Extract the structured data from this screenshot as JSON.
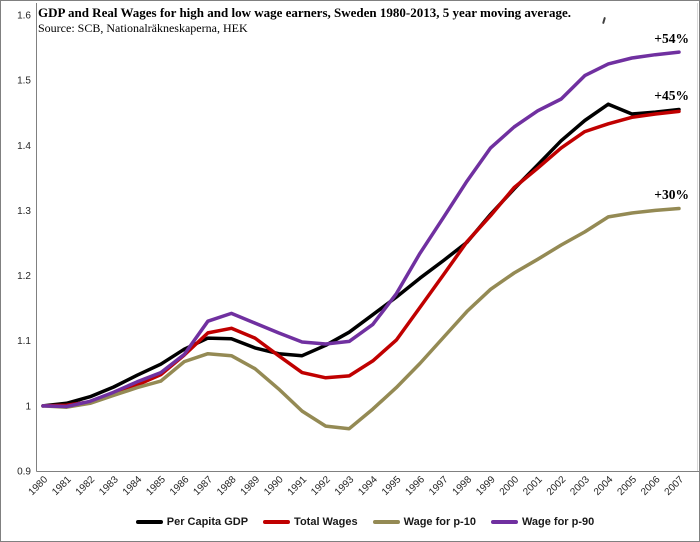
{
  "chart_data": {
    "type": "line",
    "title": "GDP and Real Wages for high and low wage earners, Sweden 1980-2013, 5 year moving average.",
    "source": "Source: SCB, Nationalräkneskaperna, HEK",
    "x": [
      "1980",
      "1981",
      "1982",
      "1983",
      "1984",
      "1985",
      "1986",
      "1987",
      "1988",
      "1989",
      "1990",
      "1991",
      "1992",
      "1993",
      "1994",
      "1995",
      "1996",
      "1997",
      "1998",
      "1999",
      "2000",
      "2001",
      "2002",
      "2003",
      "2004",
      "2005",
      "2006",
      "2007"
    ],
    "ylim": [
      0.9,
      1.6
    ],
    "yticks": [
      0.9,
      1.0,
      1.1,
      1.2,
      1.3,
      1.4,
      1.5,
      1.6
    ],
    "ytick_labels": [
      "0.9",
      "1",
      "1.1",
      "1.2",
      "1.3",
      "1.4",
      "1.5",
      "1.6"
    ],
    "grid": false,
    "legend_position": "bottom",
    "series": [
      {
        "name": "Per Capita GDP",
        "color": "#000000",
        "values": [
          1.0,
          1.004,
          1.014,
          1.029,
          1.047,
          1.064,
          1.087,
          1.104,
          1.103,
          1.089,
          1.08,
          1.077,
          1.093,
          1.113,
          1.14,
          1.167,
          1.196,
          1.223,
          1.251,
          1.294,
          1.333,
          1.37,
          1.407,
          1.438,
          1.463,
          1.448,
          1.451,
          1.455
        ]
      },
      {
        "name": "Total Wages",
        "color": "#C00000",
        "values": [
          1.0,
          1.001,
          1.006,
          1.017,
          1.032,
          1.048,
          1.078,
          1.112,
          1.119,
          1.104,
          1.077,
          1.051,
          1.043,
          1.046,
          1.069,
          1.101,
          1.151,
          1.201,
          1.252,
          1.292,
          1.335,
          1.365,
          1.396,
          1.421,
          1.433,
          1.443,
          1.448,
          1.452
        ]
      },
      {
        "name": "Wage for p-10",
        "color": "#948A54",
        "values": [
          1.0,
          0.998,
          1.004,
          1.016,
          1.028,
          1.038,
          1.068,
          1.08,
          1.077,
          1.057,
          1.026,
          0.992,
          0.969,
          0.965,
          0.995,
          1.028,
          1.065,
          1.105,
          1.145,
          1.179,
          1.204,
          1.225,
          1.247,
          1.267,
          1.29,
          1.296,
          1.3,
          1.303
        ]
      },
      {
        "name": "Wage for p-90",
        "color": "#7030A0",
        "values": [
          1.0,
          0.999,
          1.007,
          1.021,
          1.037,
          1.051,
          1.079,
          1.13,
          1.142,
          1.127,
          1.112,
          1.098,
          1.095,
          1.099,
          1.125,
          1.172,
          1.234,
          1.289,
          1.345,
          1.396,
          1.428,
          1.453,
          1.471,
          1.507,
          1.525,
          1.534,
          1.539,
          1.543
        ]
      }
    ],
    "annotations": [
      {
        "text": "+54%",
        "series": "Wage for p-90",
        "value": 1.543
      },
      {
        "text": "+45%",
        "series": "Per Capita GDP",
        "value": 1.455
      },
      {
        "text": "+30%",
        "series": "Wage for p-10",
        "value": 1.303
      }
    ]
  }
}
